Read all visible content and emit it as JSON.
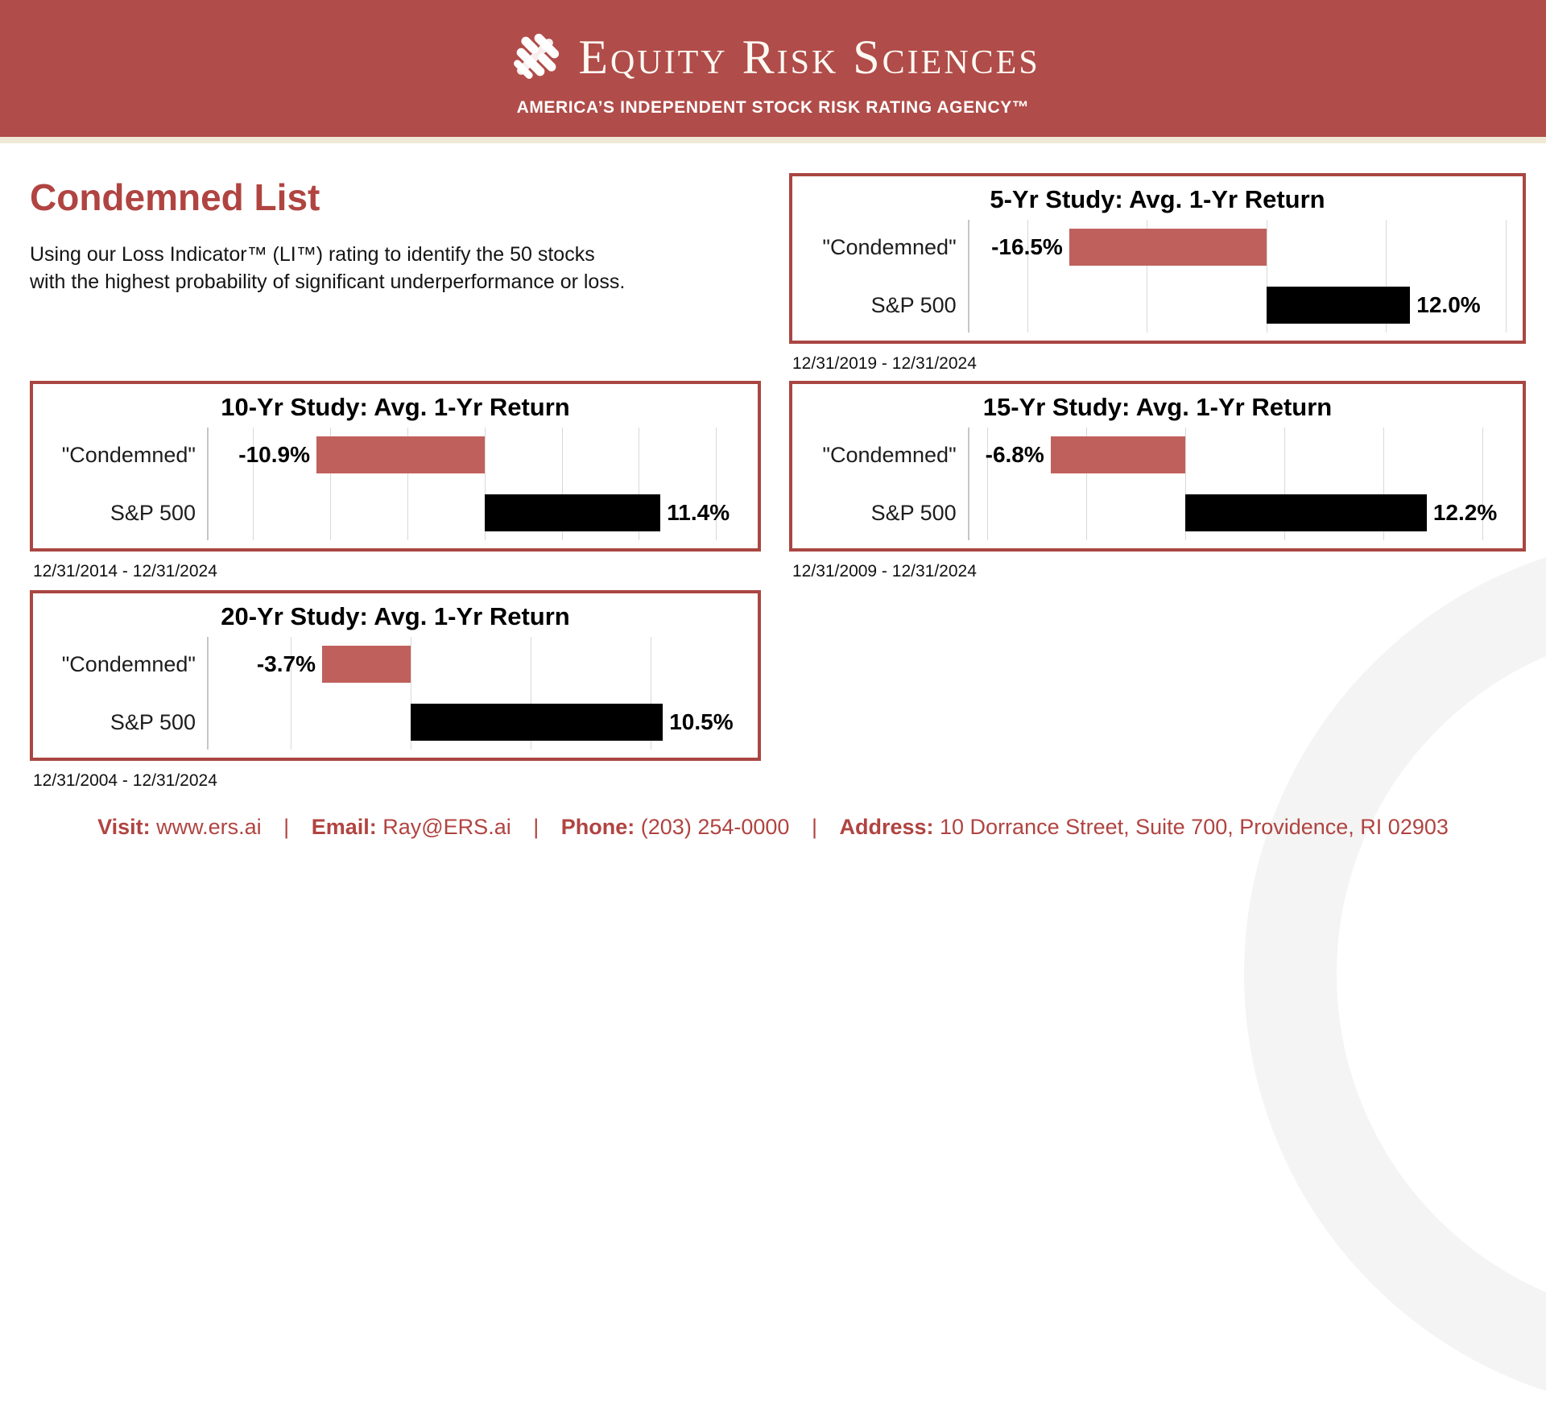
{
  "header": {
    "brand": "Equity Risk Sciences",
    "tagline": "AMERICA’S INDEPENDENT STOCK RISK RATING AGENCY™"
  },
  "page": {
    "title": "Condemned List",
    "intro": "Using our Loss Indicator™ (LI™) rating to identify the 50 stocks with the highest probability of significant underperformance or loss."
  },
  "colors": {
    "banner_red": "#b04c49",
    "accent_red": "#b04441",
    "card_border_red": "#a94642",
    "condemned_bar_red": "#c0605c",
    "sp500_bar_black": "#000000",
    "divider_cream": "#efe9d6",
    "watermark_gray": "#f4f4f4"
  },
  "chart_data": [
    {
      "type": "bar",
      "title": "5-Yr Study: Avg. 1-Yr Return",
      "period": "12/31/2019 - 12/31/2024",
      "categories": [
        "\"Condemned\"",
        "S&P 500"
      ],
      "values": [
        -16.5,
        12.0
      ],
      "value_labels": [
        "-16.5%",
        "12.0%"
      ],
      "bar_colors": [
        "#c0605c",
        "#000000"
      ],
      "xlim": [
        -25,
        20.5
      ],
      "grid_step": 10,
      "orientation": "horizontal",
      "unit": "percent"
    },
    {
      "type": "bar",
      "title": "10-Yr Study: Avg. 1-Yr Return",
      "period": "12/31/2014 - 12/31/2024",
      "categories": [
        "\"Condemned\"",
        "S&P 500"
      ],
      "values": [
        -10.9,
        11.4
      ],
      "value_labels": [
        "-10.9%",
        "11.4%"
      ],
      "bar_colors": [
        "#c0605c",
        "#000000"
      ],
      "xlim": [
        -18,
        17
      ],
      "grid_step": 5,
      "orientation": "horizontal",
      "unit": "percent"
    },
    {
      "type": "bar",
      "title": "15-Yr Study: Avg. 1-Yr Return",
      "period": "12/31/2009 - 12/31/2024",
      "categories": [
        "\"Condemned\"",
        "S&P 500"
      ],
      "values": [
        -6.8,
        12.2
      ],
      "value_labels": [
        "-6.8%",
        "12.2%"
      ],
      "bar_colors": [
        "#c0605c",
        "#000000"
      ],
      "xlim": [
        -11,
        16.5
      ],
      "grid_step": 5,
      "orientation": "horizontal",
      "unit": "percent"
    },
    {
      "type": "bar",
      "title": "20-Yr Study: Avg. 1-Yr Return",
      "period": "12/31/2004 - 12/31/2024",
      "categories": [
        "\"Condemned\"",
        "S&P 500"
      ],
      "values": [
        -3.7,
        10.5
      ],
      "value_labels": [
        "-3.7%",
        "10.5%"
      ],
      "bar_colors": [
        "#c0605c",
        "#000000"
      ],
      "xlim": [
        -8.5,
        14
      ],
      "grid_step": 5,
      "orientation": "horizontal",
      "unit": "percent"
    }
  ],
  "footer": {
    "separator": "|",
    "items": [
      {
        "label": "Visit:",
        "value": "www.ers.ai"
      },
      {
        "label": "Email:",
        "value": "Ray@ERS.ai"
      },
      {
        "label": "Phone:",
        "value": "(203) 254-0000"
      },
      {
        "label": "Address:",
        "value": "10 Dorrance Street, Suite 700, Providence, RI 02903"
      }
    ]
  }
}
